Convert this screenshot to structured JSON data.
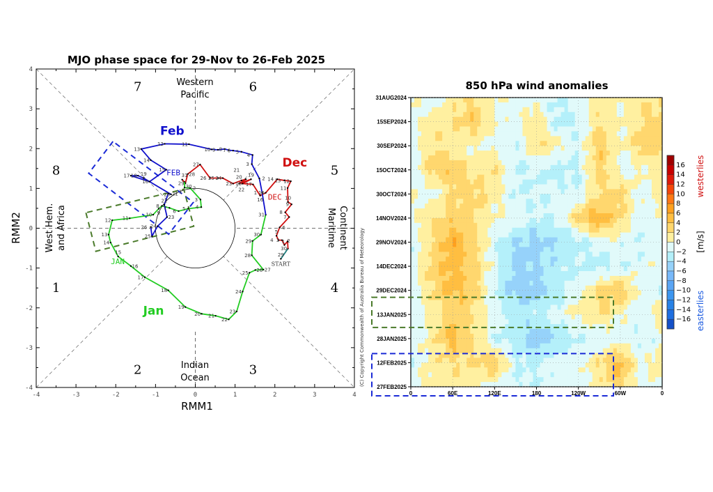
{
  "chart_data": [
    {
      "type": "line",
      "title": "MJO phase space for 29-Nov to 26-Feb 2025",
      "xlabel": "RMM1",
      "ylabel": "RMM2",
      "xlim": [
        -4,
        4
      ],
      "ylim": [
        -4,
        4
      ],
      "xticks": [
        "-4",
        "-3",
        "-2",
        "-1",
        "0",
        "1",
        "2",
        "3",
        "4"
      ],
      "yticks": [
        "-4",
        "-3",
        "-2",
        "-1",
        "0",
        "1",
        "2",
        "3",
        "4"
      ],
      "phases": [
        "1",
        "2",
        "3",
        "4",
        "5",
        "6",
        "7",
        "8"
      ],
      "regions": {
        "top": [
          "Western",
          "Pacific"
        ],
        "bottom": [
          "Indian",
          "Ocean"
        ],
        "left": [
          "West Hem.",
          "and Africa"
        ],
        "right": [
          "Maritime",
          "Continent"
        ]
      },
      "start_label": "START",
      "unit_circle_radius": 1,
      "series": [
        {
          "name": "Nov",
          "color": "#1a7a7a",
          "days": [
            "29",
            "30"
          ],
          "points": [
            [
              2.15,
              -0.77
            ],
            [
              2.33,
              -0.51
            ]
          ]
        },
        {
          "name": "Dec",
          "label": "Dec",
          "tag": "DEC",
          "color": "#d01010",
          "days": [
            "1",
            "2",
            "3",
            "4",
            "5",
            "6",
            "7",
            "8",
            "9",
            "10",
            "11",
            "12",
            "13",
            "14",
            "15",
            "16",
            "17",
            "18",
            "19",
            "20",
            "21",
            "22",
            "23",
            "24",
            "25",
            "26",
            "27",
            "28",
            "29",
            "30",
            "31"
          ],
          "points": [
            [
              2.32,
              -0.33
            ],
            [
              2.24,
              -0.42
            ],
            [
              2.18,
              -0.3
            ],
            [
              2.09,
              -0.3
            ],
            [
              2.04,
              -0.19
            ],
            [
              2.12,
              0.02
            ],
            [
              2.36,
              0.28
            ],
            [
              2.26,
              0.4
            ],
            [
              2.42,
              0.6
            ],
            [
              2.33,
              0.66
            ],
            [
              2.32,
              1.01
            ],
            [
              2.4,
              1.18
            ],
            [
              2.24,
              1.2
            ],
            [
              2.06,
              1.23
            ],
            [
              1.77,
              0.89
            ],
            [
              1.63,
              0.82
            ],
            [
              1.45,
              1.1
            ],
            [
              1.19,
              1.12
            ],
            [
              1.4,
              1.23
            ],
            [
              1.1,
              1.12
            ],
            [
              1.27,
              1.23
            ],
            [
              1.16,
              1.2
            ],
            [
              0.95,
              1.12
            ],
            [
              0.69,
              1.26
            ],
            [
              0.57,
              1.26
            ],
            [
              0.37,
              1.26
            ],
            [
              0.12,
              1.6
            ],
            [
              -0.19,
              1.36
            ],
            [
              -0.25,
              1.13
            ],
            [
              -0.33,
              1.22
            ],
            [
              -0.27,
              1.16
            ]
          ]
        },
        {
          "name": "Jan",
          "label": "Jan",
          "tag": "JAN",
          "color": "#22cc22",
          "days": [
            "1",
            "2",
            "3",
            "4",
            "5",
            "6",
            "7",
            "8",
            "9",
            "10",
            "11",
            "12",
            "13",
            "14",
            "15",
            "16",
            "17",
            "18",
            "19",
            "20",
            "21",
            "22",
            "23",
            "24",
            "25",
            "26",
            "27",
            "28",
            "29",
            "30",
            "31"
          ],
          "points": [
            [
              -0.27,
              1.02
            ],
            [
              -0.13,
              1.01
            ],
            [
              0.13,
              0.72
            ],
            [
              0.15,
              0.53
            ],
            [
              -0.18,
              0.49
            ],
            [
              -0.42,
              0.43
            ],
            [
              -0.65,
              0.51
            ],
            [
              -0.84,
              0.56
            ],
            [
              -0.92,
              0.49
            ],
            [
              -1.06,
              0.34
            ],
            [
              -1.65,
              0.25
            ],
            [
              -2.09,
              0.2
            ],
            [
              -2.18,
              -0.16
            ],
            [
              -2.13,
              -0.36
            ],
            [
              -1.94,
              -0.71
            ],
            [
              -1.62,
              -0.95
            ],
            [
              -1.27,
              -1.23
            ],
            [
              -0.68,
              -1.56
            ],
            [
              -0.25,
              -1.98
            ],
            [
              0.16,
              -2.15
            ],
            [
              0.51,
              -2.2
            ],
            [
              0.84,
              -2.29
            ],
            [
              1.04,
              -2.09
            ],
            [
              1.19,
              -1.59
            ],
            [
              1.36,
              -1.12
            ],
            [
              1.51,
              -1.05
            ],
            [
              1.71,
              -1.04
            ],
            [
              1.42,
              -0.68
            ],
            [
              1.44,
              -0.32
            ],
            [
              1.65,
              -0.16
            ],
            [
              1.77,
              0.34
            ]
          ]
        },
        {
          "name": "Feb",
          "label": "Feb",
          "tag": "FEB",
          "color": "#1010cc",
          "days": [
            "1",
            "2",
            "3",
            "4",
            "5",
            "6",
            "7",
            "8",
            "9",
            "10",
            "11",
            "12",
            "13",
            "14",
            "15",
            "16",
            "17",
            "18",
            "19",
            "20",
            "21",
            "22",
            "23",
            "24",
            "25",
            "26"
          ],
          "points": [
            [
              1.68,
              0.89
            ],
            [
              1.61,
              1.25
            ],
            [
              1.42,
              1.61
            ],
            [
              1.44,
              1.84
            ],
            [
              1.16,
              1.92
            ],
            [
              0.95,
              1.95
            ],
            [
              0.84,
              1.96
            ],
            [
              0.74,
              1.99
            ],
            [
              0.57,
              1.97
            ],
            [
              0.41,
              1.98
            ],
            [
              -0.16,
              2.11
            ],
            [
              -0.77,
              2.12
            ],
            [
              -1.36,
              1.99
            ],
            [
              -1.12,
              1.71
            ],
            [
              -0.73,
              1.47
            ],
            [
              -1.15,
              1.17
            ],
            [
              -1.62,
              1.32
            ],
            [
              -1.44,
              1.32
            ],
            [
              -1.3,
              1.26
            ],
            [
              -0.61,
              0.85
            ],
            [
              -0.68,
              0.87
            ],
            [
              -0.78,
              0.59
            ],
            [
              -0.71,
              0.28
            ],
            [
              -0.95,
              0.05
            ],
            [
              -1.09,
              -0.2
            ],
            [
              -1.12,
              0.03
            ]
          ]
        }
      ],
      "annotation_boxes": [
        {
          "color": "#1a2ad6",
          "corners": [
            [
              -2.07,
              2.18
            ],
            [
              -2.68,
              1.38
            ],
            [
              -0.67,
              -0.15
            ],
            [
              -0.05,
              0.65
            ]
          ]
        },
        {
          "color": "#4a7a2a",
          "corners": [
            [
              -2.75,
              0.39
            ],
            [
              -2.5,
              -0.58
            ],
            [
              -0.04,
              0.05
            ],
            [
              -0.29,
              0.98
            ]
          ]
        }
      ]
    },
    {
      "type": "heatmap",
      "title": "850 hPa wind anomalies",
      "x_tick_labels": [
        "0",
        "60E",
        "120E",
        "180",
        "120W",
        "60W",
        "0"
      ],
      "x_values": [
        0,
        30,
        60,
        90,
        120,
        150,
        180,
        210,
        240,
        270,
        300,
        330,
        360
      ],
      "y_tick_labels": [
        "31AUG2024",
        "15SEP2024",
        "30SEP2024",
        "15OCT2024",
        "30OCT2024",
        "14NOV2024",
        "29NOV2024",
        "14DEC2024",
        "29DEC2024",
        "13JAN2025",
        "28JAN2025",
        "12FEB2025",
        "27FEB2025"
      ],
      "values": [
        [
          0,
          -1,
          1,
          2,
          0,
          -1,
          -1,
          -2,
          -1,
          1,
          0,
          2,
          1
        ],
        [
          -1,
          1,
          2,
          4,
          0,
          -1,
          2,
          -3,
          -2,
          2,
          0,
          2,
          3
        ],
        [
          -1,
          2,
          1,
          0,
          -1,
          -2,
          2,
          1,
          -2,
          4,
          0,
          3,
          3
        ],
        [
          -2,
          3,
          4,
          1,
          2,
          -2,
          -2,
          -3,
          -2,
          3,
          -1,
          0,
          1
        ],
        [
          0,
          -1,
          2,
          3,
          1,
          -2,
          -2,
          -1,
          -2,
          2,
          3,
          -1,
          1
        ],
        [
          -1,
          2,
          3,
          2,
          0,
          -1,
          -2,
          -2,
          3,
          6,
          2,
          -1,
          0
        ],
        [
          -2,
          2,
          6,
          3,
          -2,
          -4,
          -5,
          -4,
          -3,
          -1,
          -1,
          -2,
          -1
        ],
        [
          -1,
          3,
          5,
          3,
          -1,
          -5,
          -4,
          -3,
          -2,
          -3,
          -2,
          -1,
          0
        ],
        [
          -1,
          2,
          5,
          3,
          -2,
          -5,
          -5,
          -3,
          -1,
          3,
          4,
          -1,
          -2
        ],
        [
          -2,
          1,
          3,
          2,
          -1,
          -3,
          -2,
          -1,
          1,
          2,
          0,
          -1,
          2
        ],
        [
          -1,
          1,
          5,
          2,
          -2,
          -3,
          -6,
          -4,
          -2,
          -2,
          -1,
          -2,
          -1
        ],
        [
          -2,
          1,
          2,
          2,
          4,
          -2,
          -2,
          -1,
          -1,
          2,
          5,
          -1,
          2
        ],
        [
          -1,
          1,
          1,
          0,
          -1,
          -2,
          -2,
          -1,
          -1,
          1,
          3,
          -1,
          0
        ]
      ],
      "colorbar": {
        "unit": "[m/s]",
        "top_label": "westerlies",
        "bottom_label": "easterlies",
        "top_label_color": "#d01010",
        "bottom_label_color": "#1a5ae0",
        "tick_labels": [
          "16",
          "14",
          "12",
          "10",
          "8",
          "6",
          "4",
          "2",
          "0",
          "−2",
          "−4",
          "−6",
          "−8",
          "−10",
          "−12",
          "−14",
          "−16"
        ],
        "levels": [
          16,
          14,
          12,
          10,
          8,
          6,
          4,
          2,
          0,
          -2,
          -4,
          -6,
          -8,
          -10,
          -12,
          -14,
          -16
        ],
        "colors": [
          "#a00000",
          "#c80000",
          "#e01a0a",
          "#f5460a",
          "#ff7814",
          "#ffa01e",
          "#ffbe41",
          "#ffd76e",
          "#fff0a0",
          "#e1fafa",
          "#b4f0fa",
          "#96d2fa",
          "#78b9fa",
          "#5aa5f5",
          "#3c96f0",
          "#2882e6",
          "#1e6ee0",
          "#1450c8"
        ]
      },
      "highlight_boxes": [
        {
          "color": "#4a7a2a",
          "rows": [
            "29DEC2024",
            "28JAN2025"
          ]
        },
        {
          "color": "#1a2ad6",
          "rows": [
            "12FEB2025",
            "27FEB2025"
          ]
        }
      ]
    }
  ],
  "copyright": "(C) Copyright Commonwealth of Australia Bureau of Meteorology"
}
